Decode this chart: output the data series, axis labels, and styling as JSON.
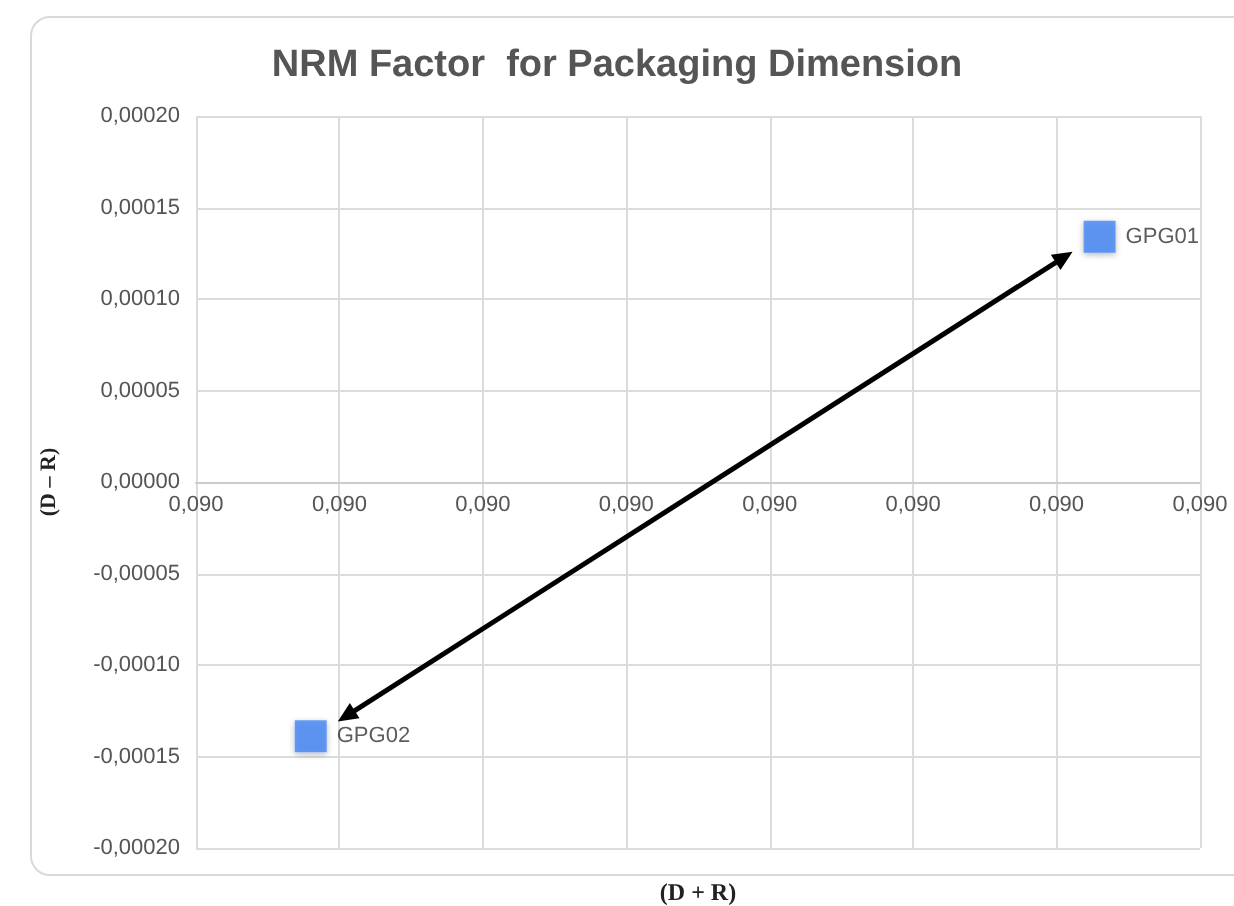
{
  "chart_data": {
    "type": "scatter",
    "title": "NRM Factor  for Packaging Dimension",
    "xlabel": "(D + R)",
    "ylabel": "(D – R)",
    "series": [
      {
        "name": "GPG01",
        "color": "#4285f4",
        "x": [
          0.09028
        ],
        "values": [
          0.000134
        ]
      },
      {
        "name": "GPG02",
        "color": "#4285f4",
        "x": [
          0.08973
        ],
        "values": [
          -0.000139
        ]
      }
    ],
    "xlim": [
      0.08965,
      0.09035
    ],
    "xticks": [
      {
        "value": 0.08965,
        "label": "0,090"
      },
      {
        "value": 0.08975,
        "label": "0,090"
      },
      {
        "value": 0.08985,
        "label": "0,090"
      },
      {
        "value": 0.08995,
        "label": "0,090"
      },
      {
        "value": 0.09005,
        "label": "0,090"
      },
      {
        "value": 0.09015,
        "label": "0,090"
      },
      {
        "value": 0.09025,
        "label": "0,090"
      },
      {
        "value": 0.09035,
        "label": "0,090"
      }
    ],
    "ylim": [
      -0.0002,
      0.0002
    ],
    "yticks": [
      {
        "value": -0.0002,
        "label": "-0,00020"
      },
      {
        "value": -0.00015,
        "label": "-0,00015"
      },
      {
        "value": -0.0001,
        "label": "-0,00010"
      },
      {
        "value": -5e-05,
        "label": "-0,00005"
      },
      {
        "value": 0,
        "label": "0,00000"
      },
      {
        "value": 5e-05,
        "label": "0,00005"
      },
      {
        "value": 0.0001,
        "label": "0,00010"
      },
      {
        "value": 0.00015,
        "label": "0,00015"
      },
      {
        "value": 0.0002,
        "label": "0,00020"
      }
    ],
    "grid": true,
    "legend": false,
    "marker": "square"
  }
}
